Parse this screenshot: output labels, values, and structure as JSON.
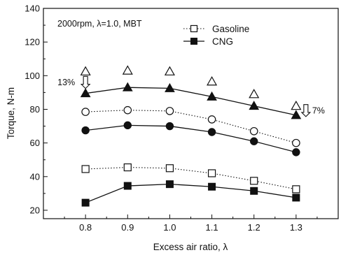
{
  "chart_data": {
    "type": "line",
    "condition_label": "2000rpm, λ=1.0, MBT",
    "xlabel": "Excess air ratio, λ",
    "ylabel": "Torque, N-m",
    "x": [
      0.8,
      0.9,
      1.0,
      1.1,
      1.2,
      1.3
    ],
    "xlim": [
      0.7,
      1.4
    ],
    "ylim": [
      15,
      140
    ],
    "xticks": [
      "0.8",
      "0.9",
      "1.0",
      "1.1",
      "1.2",
      "1.3"
    ],
    "yticks": [
      "20",
      "40",
      "60",
      "80",
      "100",
      "120",
      "140"
    ],
    "grid": false,
    "legend_position": "top-right",
    "legend": [
      {
        "label": "Gasoline",
        "line": "dotted",
        "fill": "open",
        "marker": "square"
      },
      {
        "label": "CNG",
        "line": "solid",
        "fill": "filled",
        "marker": "square"
      }
    ],
    "series": [
      {
        "fuel": "Gasoline",
        "marker": "triangle",
        "fill": "open",
        "line": "none",
        "values": [
          102.5,
          103,
          102.5,
          96.5,
          89,
          82
        ]
      },
      {
        "fuel": "CNG",
        "marker": "triangle",
        "fill": "filled",
        "line": "solid",
        "values": [
          89.5,
          93,
          92.5,
          87.5,
          82,
          76.5
        ]
      },
      {
        "fuel": "Gasoline",
        "marker": "circle",
        "fill": "open",
        "line": "dotted",
        "values": [
          78.5,
          79.5,
          79,
          74,
          67,
          60
        ]
      },
      {
        "fuel": "CNG",
        "marker": "circle",
        "fill": "filled",
        "line": "solid",
        "values": [
          67.5,
          70.5,
          70,
          66.5,
          61,
          54.5
        ]
      },
      {
        "fuel": "Gasoline",
        "marker": "square",
        "fill": "open",
        "line": "dotted",
        "values": [
          44.5,
          45.5,
          45,
          42,
          37.5,
          32.5
        ]
      },
      {
        "fuel": "CNG",
        "marker": "square",
        "fill": "filled",
        "line": "solid",
        "values": [
          24.5,
          34.5,
          35.5,
          34,
          31.5,
          27.5
        ]
      }
    ],
    "annotations": [
      {
        "text": "13%",
        "x": 0.8,
        "from_value": 102.5,
        "to_value": 89.5
      },
      {
        "text": "7%",
        "x": 1.3,
        "from_value": 82,
        "to_value": 76.5
      }
    ]
  }
}
